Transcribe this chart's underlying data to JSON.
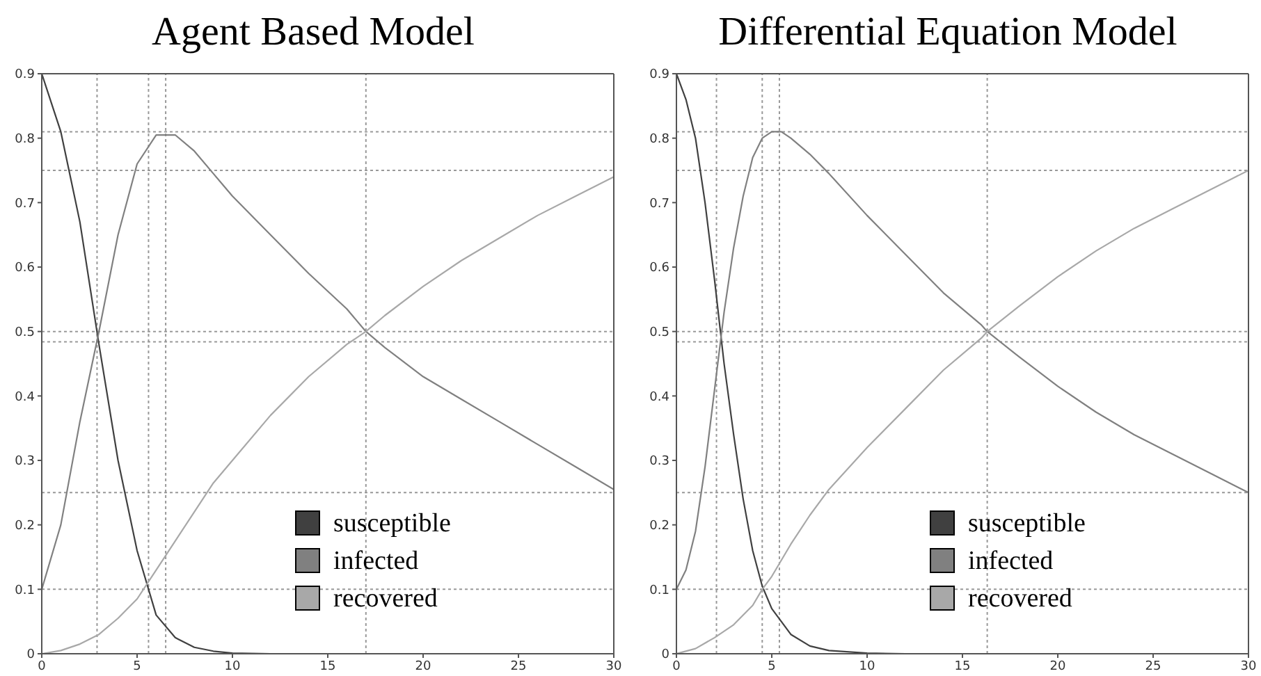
{
  "chart_data": [
    {
      "type": "line",
      "title": "Agent Based Model",
      "xlim": [
        0,
        30
      ],
      "xticks": [
        0,
        5,
        10,
        15,
        20,
        25,
        30
      ],
      "ylim": [
        0,
        0.9
      ],
      "yticks": [
        0,
        0.1,
        0.2,
        0.3,
        0.4,
        0.5,
        0.6,
        0.7,
        0.8,
        0.9
      ],
      "grid": false,
      "legend": "bottom right",
      "marker": "none",
      "line_style": "solid",
      "series": [
        {
          "name": "susceptible",
          "color": "#404040",
          "x": [
            0,
            1,
            2,
            3,
            4,
            5,
            6,
            7,
            8,
            9,
            10,
            12,
            30
          ],
          "values": [
            0.9,
            0.81,
            0.67,
            0.48,
            0.3,
            0.16,
            0.06,
            0.025,
            0.01,
            0.004,
            0.001,
            0,
            0
          ]
        },
        {
          "name": "infected",
          "color": "#808080",
          "x": [
            0,
            1,
            2,
            3,
            4,
            5,
            6,
            7,
            8,
            9,
            10,
            12,
            14,
            16,
            17,
            18,
            20,
            22,
            24,
            26,
            28,
            30
          ],
          "values": [
            0.1,
            0.2,
            0.36,
            0.5,
            0.65,
            0.76,
            0.805,
            0.805,
            0.78,
            0.745,
            0.71,
            0.65,
            0.59,
            0.535,
            0.5,
            0.475,
            0.43,
            0.395,
            0.36,
            0.325,
            0.29,
            0.255
          ]
        },
        {
          "name": "recovered",
          "color": "#a8a8a8",
          "x": [
            0,
            1,
            2,
            3,
            4,
            5,
            6,
            7,
            8,
            9,
            10,
            12,
            14,
            16,
            17,
            18,
            20,
            22,
            24,
            26,
            28,
            30
          ],
          "values": [
            0,
            0.005,
            0.015,
            0.03,
            0.055,
            0.085,
            0.13,
            0.175,
            0.22,
            0.265,
            0.3,
            0.37,
            0.43,
            0.48,
            0.5,
            0.525,
            0.57,
            0.61,
            0.645,
            0.68,
            0.71,
            0.74
          ]
        }
      ],
      "ref_lines": [
        {
          "axis": "x",
          "value": 2.9,
          "color": "#999999",
          "line_style": "dotted"
        },
        {
          "axis": "x",
          "value": 5.6,
          "color": "#999999",
          "line_style": "dotted"
        },
        {
          "axis": "x",
          "value": 6.5,
          "color": "#999999",
          "line_style": "dotted"
        },
        {
          "axis": "x",
          "value": 17,
          "color": "#999999",
          "line_style": "dotted"
        },
        {
          "axis": "y",
          "value": 0.81,
          "color": "#999999",
          "line_style": "dotted"
        },
        {
          "axis": "y",
          "value": 0.75,
          "color": "#999999",
          "line_style": "dotted"
        },
        {
          "axis": "y",
          "value": 0.5,
          "color": "#999999",
          "line_style": "dotted"
        },
        {
          "axis": "y",
          "value": 0.484,
          "color": "#999999",
          "line_style": "dotted"
        },
        {
          "axis": "y",
          "value": 0.25,
          "color": "#999999",
          "line_style": "dotted"
        },
        {
          "axis": "y",
          "value": 0.1,
          "color": "#999999",
          "line_style": "dotted"
        }
      ]
    },
    {
      "type": "line",
      "title": "Differential Equation Model",
      "xlim": [
        0,
        30
      ],
      "xticks": [
        0,
        5,
        10,
        15,
        20,
        25,
        30
      ],
      "ylim": [
        0,
        0.9
      ],
      "yticks": [
        0,
        0.1,
        0.2,
        0.3,
        0.4,
        0.5,
        0.6,
        0.7,
        0.8,
        0.9
      ],
      "grid": false,
      "legend": "bottom right",
      "marker": "none",
      "line_style": "solid",
      "series": [
        {
          "name": "susceptible",
          "color": "#404040",
          "x": [
            0,
            0.5,
            1,
            1.5,
            2,
            2.5,
            3,
            3.5,
            4,
            4.5,
            5,
            6,
            7,
            8,
            10,
            12,
            30
          ],
          "values": [
            0.9,
            0.86,
            0.8,
            0.7,
            0.58,
            0.45,
            0.34,
            0.24,
            0.16,
            0.105,
            0.07,
            0.03,
            0.012,
            0.005,
            0.001,
            0,
            0
          ]
        },
        {
          "name": "infected",
          "color": "#808080",
          "x": [
            0,
            0.5,
            1,
            1.5,
            2,
            2.5,
            3,
            3.5,
            4,
            4.5,
            5,
            5.5,
            6,
            7,
            8,
            10,
            12,
            14,
            16,
            16.3,
            18,
            20,
            22,
            24,
            26,
            28,
            30
          ],
          "values": [
            0.1,
            0.13,
            0.19,
            0.29,
            0.41,
            0.53,
            0.63,
            0.71,
            0.77,
            0.8,
            0.81,
            0.81,
            0.8,
            0.775,
            0.745,
            0.68,
            0.62,
            0.56,
            0.51,
            0.5,
            0.46,
            0.415,
            0.375,
            0.34,
            0.31,
            0.28,
            0.25
          ]
        },
        {
          "name": "recovered",
          "color": "#a8a8a8",
          "x": [
            0,
            1,
            2,
            3,
            4,
            4.5,
            5,
            6,
            7,
            8,
            10,
            12,
            14,
            16,
            16.3,
            18,
            20,
            22,
            24,
            26,
            28,
            30
          ],
          "values": [
            0,
            0.008,
            0.025,
            0.045,
            0.075,
            0.1,
            0.12,
            0.17,
            0.215,
            0.255,
            0.32,
            0.38,
            0.44,
            0.49,
            0.5,
            0.54,
            0.585,
            0.625,
            0.66,
            0.69,
            0.72,
            0.75
          ]
        }
      ],
      "ref_lines": [
        {
          "axis": "x",
          "value": 2.1,
          "color": "#999999",
          "line_style": "dotted"
        },
        {
          "axis": "x",
          "value": 4.5,
          "color": "#999999",
          "line_style": "dotted"
        },
        {
          "axis": "x",
          "value": 5.4,
          "color": "#999999",
          "line_style": "dotted"
        },
        {
          "axis": "x",
          "value": 16.3,
          "color": "#999999",
          "line_style": "dotted"
        },
        {
          "axis": "y",
          "value": 0.81,
          "color": "#999999",
          "line_style": "dotted"
        },
        {
          "axis": "y",
          "value": 0.75,
          "color": "#999999",
          "line_style": "dotted"
        },
        {
          "axis": "y",
          "value": 0.5,
          "color": "#999999",
          "line_style": "dotted"
        },
        {
          "axis": "y",
          "value": 0.484,
          "color": "#999999",
          "line_style": "dotted"
        },
        {
          "axis": "y",
          "value": 0.25,
          "color": "#999999",
          "line_style": "dotted"
        },
        {
          "axis": "y",
          "value": 0.1,
          "color": "#999999",
          "line_style": "dotted"
        }
      ]
    }
  ]
}
